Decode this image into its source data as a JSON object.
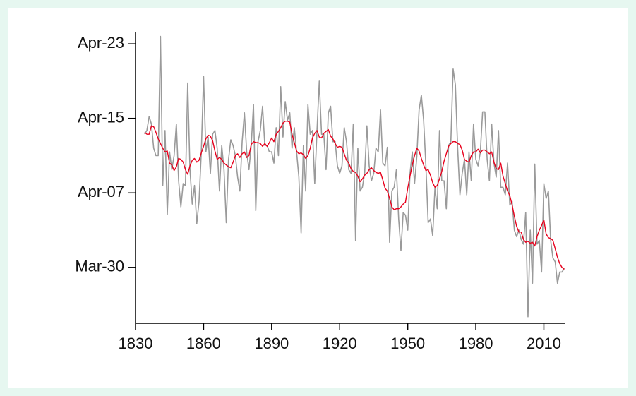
{
  "chart_data": {
    "type": "line",
    "x": [
      1834,
      1835,
      1836,
      1837,
      1838,
      1839,
      1840,
      1841,
      1842,
      1843,
      1844,
      1845,
      1846,
      1847,
      1848,
      1849,
      1850,
      1851,
      1852,
      1853,
      1854,
      1855,
      1856,
      1857,
      1858,
      1859,
      1860,
      1861,
      1862,
      1863,
      1864,
      1865,
      1866,
      1867,
      1868,
      1869,
      1870,
      1871,
      1872,
      1873,
      1874,
      1875,
      1876,
      1877,
      1878,
      1879,
      1880,
      1881,
      1882,
      1883,
      1884,
      1885,
      1886,
      1887,
      1888,
      1889,
      1890,
      1891,
      1892,
      1893,
      1894,
      1895,
      1896,
      1897,
      1898,
      1899,
      1900,
      1901,
      1902,
      1903,
      1904,
      1905,
      1906,
      1907,
      1908,
      1909,
      1910,
      1911,
      1912,
      1913,
      1914,
      1915,
      1916,
      1917,
      1918,
      1919,
      1920,
      1921,
      1922,
      1923,
      1924,
      1925,
      1926,
      1927,
      1928,
      1929,
      1930,
      1931,
      1932,
      1933,
      1934,
      1935,
      1936,
      1937,
      1938,
      1939,
      1940,
      1941,
      1942,
      1943,
      1944,
      1945,
      1946,
      1947,
      1948,
      1949,
      1950,
      1951,
      1952,
      1953,
      1954,
      1955,
      1956,
      1957,
      1958,
      1959,
      1960,
      1961,
      1962,
      1963,
      1964,
      1965,
      1966,
      1967,
      1968,
      1969,
      1970,
      1971,
      1972,
      1973,
      1974,
      1975,
      1976,
      1977,
      1978,
      1979,
      1980,
      1981,
      1982,
      1983,
      1984,
      1985,
      1986,
      1987,
      1988,
      1989,
      1990,
      1991,
      1992,
      1993,
      1994,
      1995,
      1996,
      1997,
      1998,
      1999,
      2000,
      2001,
      2002,
      2003,
      2004,
      2005,
      2006,
      2007,
      2008,
      2009,
      2010,
      2011,
      2012,
      2013,
      2014,
      2015,
      2016,
      2017,
      2018,
      2019
    ],
    "series": [
      {
        "color": "#9a9a9a",
        "values": [
          103.3,
          103.7,
          105.2,
          104.4,
          101.8,
          101,
          101,
          113.8,
          97.8,
          103.7,
          94.7,
          101.4,
          99.5,
          101,
          104.4,
          98.3,
          95.5,
          98,
          97.8,
          108.8,
          99.5,
          95.8,
          97.8,
          93.7,
          96.1,
          101.4,
          109.5,
          101.4,
          103,
          99.1,
          103.3,
          103.7,
          101.8,
          97.2,
          102.1,
          99.5,
          93.8,
          100.6,
          102.7,
          102.1,
          101,
          98.7,
          97.2,
          102.5,
          105.6,
          101.4,
          99.5,
          102.1,
          106.5,
          95.1,
          102.5,
          103.7,
          106.3,
          102.1,
          102.1,
          101.4,
          101.4,
          100.2,
          104,
          101,
          108.4,
          103,
          106.8,
          104.8,
          105.6,
          101.8,
          104,
          101.4,
          98.7,
          92.7,
          102.1,
          97.2,
          106.5,
          103.3,
          103.7,
          98,
          103.7,
          109,
          103.3,
          103.3,
          99.5,
          105.6,
          106.3,
          102.5,
          102.5,
          99.9,
          99.1,
          99.9,
          104,
          102.5,
          99.5,
          99.1,
          104.4,
          91.9,
          101.8,
          97.2,
          97.6,
          99.1,
          104.2,
          99.9,
          98.3,
          99.1,
          101.8,
          101.4,
          105.9,
          100.2,
          99.9,
          101.9,
          91.7,
          97.2,
          97.6,
          99.5,
          94.2,
          90.8,
          94.9,
          94.6,
          93,
          99.1,
          101.4,
          98,
          100.9,
          105.9,
          107.5,
          104.8,
          99.9,
          93.8,
          94.2,
          92.4,
          97.6,
          95.3,
          103.7,
          98.3,
          98.3,
          95.3,
          102.1,
          102.5,
          110.3,
          108.6,
          101.8,
          96.8,
          99.1,
          100.6,
          96.8,
          101.4,
          98.3,
          104.4,
          100.6,
          99.9,
          101.4,
          105.7,
          105.7,
          100.6,
          98.3,
          104.4,
          100.2,
          98.7,
          103.7,
          97.6,
          97.6,
          96.8,
          100.2,
          95.7,
          96.1,
          93,
          92.3,
          93,
          92,
          91.5,
          94.9,
          83.7,
          93,
          87.3,
          100.1,
          91.5,
          91.9,
          88.5,
          98,
          96.4,
          97.2,
          91.9,
          90,
          89.6,
          87.3,
          88.5,
          88.5,
          88.9
        ]
      },
      {
        "color": "#e8001c",
        "values": [
          103.5,
          103.3,
          103.3,
          104.2,
          104.1,
          103.5,
          102.8,
          102.3,
          101.8,
          101.4,
          101.5,
          100.2,
          100,
          99.4,
          99.8,
          100.7,
          100.6,
          100.3,
          99.5,
          99,
          99.9,
          100.5,
          100.7,
          100.3,
          100.5,
          101.3,
          102,
          102.8,
          103.2,
          103.1,
          102.6,
          101.5,
          100.6,
          100.8,
          100.6,
          100.2,
          100,
          99.8,
          99.7,
          100.3,
          101,
          101.2,
          100.8,
          101.2,
          101.4,
          100.8,
          101,
          102.2,
          102.5,
          102.4,
          102.4,
          102.3,
          102,
          102.3,
          102,
          102.4,
          102.9,
          102.5,
          103.3,
          103.6,
          104,
          104.5,
          104.7,
          104.7,
          104.6,
          103.3,
          102.4,
          101.5,
          101.2,
          101.3,
          101.1,
          100.7,
          101,
          101.8,
          102.9,
          103.4,
          103.7,
          103,
          102.9,
          103.4,
          103.6,
          103.8,
          103.1,
          102.8,
          102.3,
          101.9,
          102,
          101.9,
          101.2,
          100.5,
          100.2,
          99.6,
          99.3,
          99.2,
          98.8,
          98.2,
          98.5,
          98.9,
          99.1,
          99.5,
          99.7,
          99.4,
          99.2,
          99.1,
          99.2,
          98.4,
          97.5,
          97.2,
          96.4,
          95.5,
          95.2,
          95.3,
          95.3,
          95.5,
          95.8,
          96,
          97.5,
          98.8,
          100,
          101,
          101.8,
          101.5,
          100.7,
          100,
          99.4,
          99.5,
          98.9,
          98.1,
          97.6,
          97.8,
          98.5,
          99.3,
          100.4,
          101.2,
          102,
          102.3,
          102.5,
          102.5,
          102.3,
          102.2,
          101.6,
          100.6,
          100.4,
          100.3,
          101,
          101.4,
          101.4,
          101.7,
          101.3,
          101.6,
          101.6,
          101.4,
          101.2,
          101.4,
          100.3,
          99.6,
          99.5,
          100.2,
          98.8,
          98,
          97.2,
          96.7,
          95.7,
          94.5,
          93.4,
          92.8,
          92.8,
          92,
          91.7,
          91.8,
          91.6,
          91.7,
          91.3,
          92.3,
          93,
          93.5,
          94.1,
          92.6,
          92.2,
          92.1,
          91.9,
          91,
          90.1,
          89.4,
          89,
          88.8
        ]
      }
    ],
    "xlim": [
      1830,
      2019.5
    ],
    "xticks": [
      1830,
      1860,
      1890,
      1920,
      1950,
      1980,
      2010
    ],
    "ylim": [
      83,
      114.3
    ],
    "yticks": [
      {
        "value": 89,
        "label": "Mar-30"
      },
      {
        "value": 97,
        "label": "Apr-07"
      },
      {
        "value": 105,
        "label": "Apr-15"
      },
      {
        "value": 113,
        "label": "Apr-23"
      }
    ]
  }
}
